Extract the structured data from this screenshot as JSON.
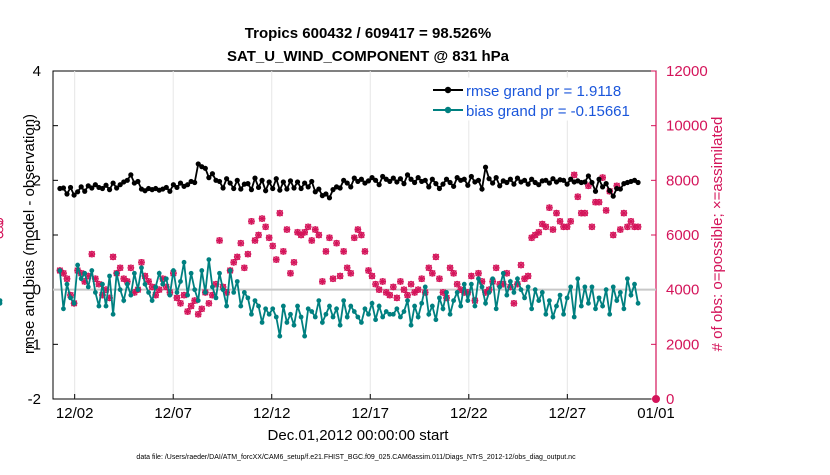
{
  "chart_data": {
    "type": "line",
    "title": "Tropics 600432 / 609417 = 98.526%",
    "subtitle": "SAT_U_WIND_COMPONENT @ 831 hPa",
    "xlabel": "Dec.01,2012 00:00:00 start",
    "ylabel": "rmse and bias (model - observation)",
    "ylabel_right": "# of obs: o=possible; ×=assimilated",
    "footnote": "data file: /Users/raeder/DAI/ATM_forcXX/CAM6_setup/f.e21.FHIST_BGC.f09_025.CAM6assim.011/Diags_NTrS_2012-12/obs_diag_output.nc",
    "xlim": [
      0.4,
      31.0
    ],
    "ylim": [
      -2,
      4
    ],
    "ylim_right": [
      0,
      12000
    ],
    "x_ticks": [
      1.5,
      6.5,
      11.5,
      16.5,
      21.5,
      26.5,
      31.0
    ],
    "x_tick_labels": [
      "12/02",
      "12/07",
      "12/12",
      "12/17",
      "12/22",
      "12/27",
      "01/01"
    ],
    "y_ticks": [
      -2,
      -1,
      0,
      1,
      2,
      3,
      4
    ],
    "y_ticks_right": [
      0,
      2000,
      4000,
      6000,
      8000,
      10000,
      12000
    ],
    "colors": {
      "rmse": "#000000",
      "bias": "#008080",
      "obs": "#d4145a",
      "zero": "#c8c8c8"
    },
    "series": [
      {
        "name": "rmse grand pr = 1.9118",
        "axis": "left",
        "values": [
          1.85,
          1.86,
          1.75,
          1.87,
          1.73,
          1.79,
          1.88,
          1.8,
          1.9,
          1.86,
          1.92,
          1.87,
          1.85,
          1.91,
          1.83,
          1.95,
          1.86,
          1.92,
          1.97,
          2.0,
          2.1,
          1.95,
          1.98,
          1.84,
          1.81,
          1.85,
          1.83,
          1.85,
          1.82,
          1.84,
          1.87,
          1.8,
          1.92,
          1.87,
          1.95,
          1.89,
          1.92,
          1.98,
          1.96,
          2.3,
          2.25,
          2.22,
          2.05,
          2.12,
          2.0,
          1.98,
          1.86,
          2.03,
          1.95,
          1.85,
          2.0,
          1.84,
          1.93,
          1.94,
          1.83,
          2.04,
          1.87,
          2.0,
          1.81,
          1.97,
          1.85,
          2.03,
          1.82,
          1.97,
          1.84,
          1.99,
          1.86,
          1.97,
          1.85,
          1.95,
          1.88,
          1.98,
          1.79,
          1.84,
          1.72,
          1.75,
          1.68,
          1.83,
          1.88,
          1.86,
          2.0,
          1.95,
          1.88,
          2.04,
          1.98,
          2.02,
          1.95,
          1.99,
          2.05,
          2.0,
          1.92,
          2.07,
          2.02,
          1.98,
          2.04,
          1.97,
          2.03,
          1.94,
          2.1,
          2.02,
          1.96,
          2.05,
          1.98,
          2.0,
          1.88,
          2.02,
          1.94,
          1.85,
          1.93,
          2.02,
          1.96,
          1.89,
          2.05,
          2.0,
          2.02,
          1.91,
          2.07,
          1.97,
          2.0,
          1.84,
          2.24,
          2.03,
          1.95,
          2.05,
          1.9,
          1.99,
          1.96,
          2.02,
          1.93,
          2.04,
          1.97,
          2.0,
          1.93,
          2.02,
          1.96,
          1.92,
          1.99,
          2.0,
          1.95,
          2.03,
          1.97,
          2.01,
          2.0,
          1.93,
          2.02,
          1.97,
          1.99,
          1.96,
          1.97,
          2.08,
          1.96,
          1.8,
          2.02,
          1.88,
          1.94,
          1.81,
          1.71,
          1.85,
          1.84,
          1.94,
          1.96,
          1.98,
          2.0,
          1.96
        ]
      },
      {
        "name": "bias grand pr = -0.15661",
        "axis": "left",
        "values": [
          0.35,
          -0.35,
          0.1,
          -0.15,
          -0.25,
          0.45,
          0.2,
          0.3,
          0.05,
          0.35,
          -0.05,
          -0.3,
          0.1,
          -0.3,
          0.25,
          -0.45,
          0.3,
          0.0,
          -0.2,
          0.1,
          -0.1,
          0.3,
          0.0,
          0.4,
          0.1,
          -0.05,
          -0.2,
          0.05,
          0.3,
          0.1,
          0.2,
          -0.1,
          0.35,
          -0.05,
          0.15,
          0.5,
          -0.1,
          0.3,
          0.0,
          -0.2,
          0.35,
          -0.05,
          0.55,
          0.05,
          -0.15,
          0.3,
          0.0,
          -0.3,
          0.35,
          -0.05,
          0.15,
          -0.3,
          -0.05,
          -0.15,
          -0.45,
          -0.2,
          -0.3,
          -0.6,
          -0.35,
          -0.45,
          -0.35,
          -0.5,
          -0.85,
          -0.3,
          -0.6,
          -0.45,
          -0.65,
          -0.3,
          -0.5,
          -0.85,
          -0.35,
          -0.4,
          -0.5,
          -0.2,
          -0.6,
          -0.45,
          -0.3,
          -0.5,
          -0.35,
          -0.65,
          -0.2,
          -0.5,
          -0.3,
          -0.4,
          -0.5,
          -0.6,
          -0.35,
          -0.45,
          -0.25,
          -0.55,
          -0.3,
          -0.5,
          -0.4,
          -0.45,
          -0.45,
          -0.35,
          -0.5,
          -0.4,
          -0.2,
          -0.65,
          -0.3,
          -0.5,
          -0.25,
          0.05,
          -0.45,
          -0.3,
          -0.55,
          -0.15,
          -0.35,
          -0.05,
          -0.45,
          -0.2,
          -0.05,
          -0.3,
          0.1,
          -0.2,
          0.1,
          -0.3,
          0.2,
          0.05,
          -0.25,
          -0.05,
          0.2,
          -0.35,
          0.05,
          0.3,
          -0.1,
          0.15,
          -0.05,
          0.2,
          0.0,
          -0.15,
          0.05,
          -0.35,
          0.0,
          -0.2,
          -0.05,
          -0.45,
          -0.2,
          -0.5,
          -0.3,
          -0.1,
          -0.45,
          -0.15,
          0.05,
          -0.5,
          0.2,
          -0.3,
          0.05,
          -0.25,
          0.05,
          -0.35,
          -0.15,
          -0.3,
          0.0,
          -0.45,
          0.05,
          -0.2,
          -0.05,
          -0.35,
          0.2,
          -0.1,
          0.1,
          -0.25,
          -0.2,
          -0.25
        ]
      },
      {
        "name": "obs possible / assimilated",
        "axis": "right",
        "values": [
          4700,
          4600,
          4400,
          3800,
          3500,
          4700,
          4600,
          4300,
          4500,
          5300,
          4400,
          4200,
          3800,
          4000,
          3700,
          5200,
          4600,
          4800,
          4400,
          4300,
          4800,
          3900,
          4000,
          5000,
          4500,
          4300,
          4100,
          3800,
          4000,
          4400,
          4100,
          3900,
          4600,
          3700,
          3500,
          3800,
          3200,
          3400,
          3600,
          3100,
          3300,
          3900,
          3500,
          3800,
          4200,
          5800,
          4100,
          3900,
          4700,
          5000,
          5200,
          5700,
          4800,
          5300,
          6500,
          5800,
          6000,
          6600,
          6300,
          5900,
          5600,
          5100,
          6800,
          5400,
          6200,
          4600,
          5000,
          6100,
          6000,
          6100,
          6300,
          5800,
          6200,
          6000,
          4300,
          5400,
          5900,
          4400,
          5700,
          4500,
          5400,
          4800,
          4600,
          5900,
          6200,
          6000,
          5400,
          4700,
          4500,
          4200,
          4000,
          4300,
          3900,
          3800,
          4100,
          3700,
          4300,
          4000,
          3800,
          4200,
          3900,
          4000,
          4400,
          3900,
          4800,
          4600,
          5200,
          4400,
          3900,
          3700,
          4800,
          4600,
          4200,
          4000,
          3900,
          3900,
          4500,
          3600,
          4600,
          4300,
          3900,
          4000,
          4300,
          4800,
          4200,
          4200,
          4600,
          4100,
          3500,
          4200,
          4900,
          4400,
          4500,
          5900,
          6000,
          6100,
          6400,
          6300,
          7000,
          6200,
          6800,
          6500,
          6300,
          6300,
          6500,
          8200,
          7400,
          6800,
          6800,
          7800,
          6300,
          7200,
          7200,
          8100,
          6900,
          7600,
          6000,
          7800,
          6200,
          6800,
          6300,
          6500,
          6300,
          6300,
          6000,
          6500,
          6400,
          6000,
          6500,
          6200
        ]
      }
    ],
    "final_obs_value": 0
  }
}
